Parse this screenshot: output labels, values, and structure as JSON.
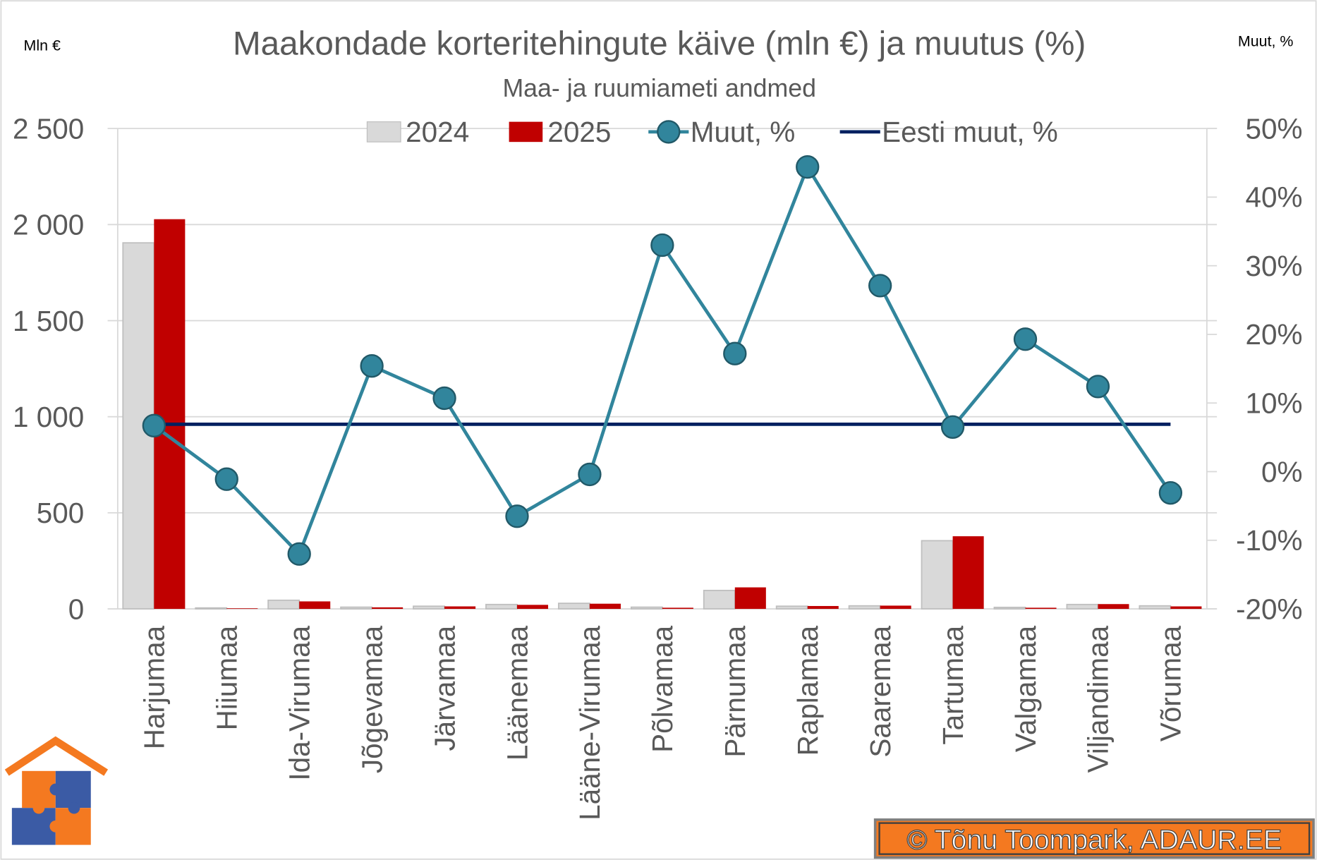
{
  "chart_data": {
    "type": "bar+line",
    "title": "Maakondade korteritehingute käive (mln €) ja muutus (%)",
    "subtitle": "Maa- ja ruumiameti andmed",
    "ylabel_left": "Mln €",
    "ylabel_right": "Muut, %",
    "ylim_left": [
      0,
      2500
    ],
    "ylim_right": [
      -20,
      50
    ],
    "left_ticks": [
      "0",
      "500",
      "1 000",
      "1 500",
      "2 000",
      "2 500"
    ],
    "right_ticks": [
      "-20%",
      "-10%",
      "0%",
      "10%",
      "20%",
      "30%",
      "40%",
      "50%"
    ],
    "grid": true,
    "legend_placement": "top",
    "categories": [
      "Harjumaa",
      "Hiiumaa",
      "Ida-Virumaa",
      "Jõgevamaa",
      "Järvamaa",
      "Läänemaa",
      "Lääne-Virumaa",
      "Põlvamaa",
      "Pärnumaa",
      "Raplamaa",
      "Saaremaa",
      "Tartumaa",
      "Valgamaa",
      "Viljandimaa",
      "Võrumaa"
    ],
    "series": [
      {
        "name": "2024",
        "type": "bar",
        "axis": "left",
        "color": "#d9d9d9",
        "values": [
          1905,
          5,
          45,
          9,
          14,
          23,
          29,
          9,
          96,
          14,
          16,
          355,
          8,
          23,
          16
        ]
      },
      {
        "name": "2025",
        "type": "bar",
        "axis": "left",
        "color": "#c00000",
        "values": [
          2028,
          3,
          39,
          8,
          13,
          21,
          27,
          6,
          112,
          15,
          17,
          378,
          6,
          25,
          13
        ]
      },
      {
        "name": "Muut, %",
        "type": "line-marker",
        "axis": "right",
        "color": "#31859c",
        "values": [
          6.7,
          -1.1,
          -12.0,
          15.4,
          10.7,
          -6.5,
          -0.4,
          33.0,
          17.2,
          44.4,
          27.1,
          6.5,
          19.3,
          12.4,
          -3.1
        ]
      },
      {
        "name": "Eesti muut, %",
        "type": "line",
        "axis": "right",
        "color": "#002060",
        "value": 6.9
      }
    ]
  },
  "credit": "© Tõnu Toompark, ADAUR.EE",
  "colors": {
    "accent_orange": "#f47920",
    "logo_blue": "#3b5ba5"
  }
}
